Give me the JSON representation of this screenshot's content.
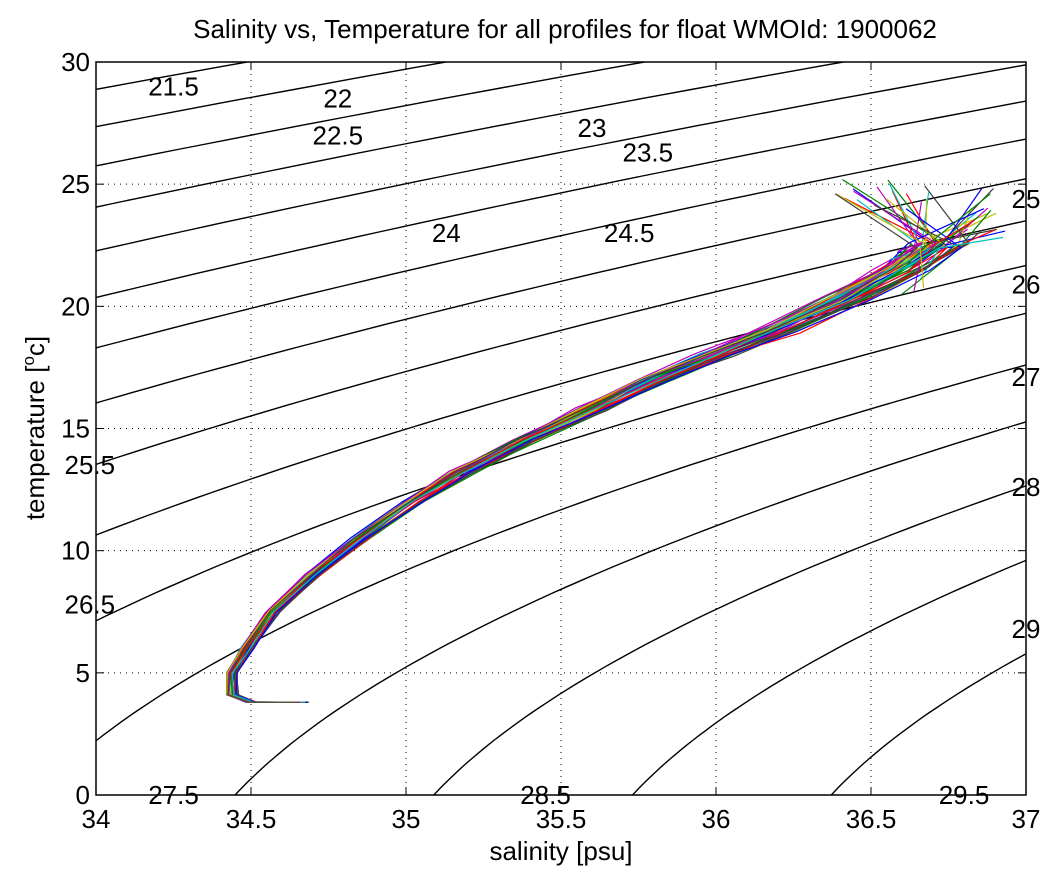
{
  "chart_data": {
    "type": "line",
    "title": "Salinity vs, Temperature for all profiles for float WMOId: 1900062",
    "xlabel": "salinity [psu]",
    "ylabel_main": "temperature [",
    "ylabel_sup": "o",
    "ylabel_tail": "c]",
    "xlim": [
      34,
      37
    ],
    "ylim": [
      0,
      30
    ],
    "xticks": [
      34,
      34.5,
      35,
      35.5,
      36,
      36.5,
      37
    ],
    "xtick_labels": [
      "34",
      "34.5",
      "35",
      "35.5",
      "36",
      "36.5",
      "37"
    ],
    "yticks": [
      0,
      5,
      10,
      15,
      20,
      25,
      30
    ],
    "ytick_labels": [
      "0",
      "5",
      "10",
      "15",
      "20",
      "25",
      "30"
    ],
    "grid": true,
    "legend": "none",
    "density_contours": [
      21.5,
      22,
      22.5,
      23,
      23.5,
      24,
      24.5,
      25,
      25.5,
      26,
      26.5,
      27,
      27.5,
      28,
      28.5,
      29,
      29.5
    ],
    "contour_labels": [
      {
        "text": "21.5",
        "s": 34.25,
        "t": 29.0
      },
      {
        "text": "22",
        "s": 34.78,
        "t": 28.5
      },
      {
        "text": "22.5",
        "s": 34.78,
        "t": 27.0
      },
      {
        "text": "23",
        "s": 35.6,
        "t": 27.3
      },
      {
        "text": "23.5",
        "s": 35.78,
        "t": 26.3
      },
      {
        "text": "24",
        "s": 35.13,
        "t": 23.0
      },
      {
        "text": "24.5",
        "s": 35.72,
        "t": 23.0
      },
      {
        "text": "25",
        "s": 37.0,
        "t": 24.4
      },
      {
        "text": "26",
        "s": 37.0,
        "t": 20.9
      },
      {
        "text": "27",
        "s": 37.0,
        "t": 17.1
      },
      {
        "text": "28",
        "s": 37.0,
        "t": 12.6
      },
      {
        "text": "29",
        "s": 37.0,
        "t": 6.8
      },
      {
        "text": "25.5",
        "s": 33.98,
        "t": 13.5
      },
      {
        "text": "26.5",
        "s": 33.98,
        "t": 7.8
      },
      {
        "text": "27.5",
        "s": 34.25,
        "t": 0.0
      },
      {
        "text": "28.5",
        "s": 35.45,
        "t": 0.0
      },
      {
        "text": "29.5",
        "s": 36.8,
        "t": 0.0
      }
    ],
    "profile_colors": [
      "#0000ff",
      "#008000",
      "#ff0000",
      "#00bfbf",
      "#bf00bf",
      "#bfbf00",
      "#404040"
    ],
    "profile_count": 49,
    "mean_profile": [
      {
        "s": 34.67,
        "t": 3.8
      },
      {
        "s": 34.5,
        "t": 3.8
      },
      {
        "s": 34.44,
        "t": 4.1
      },
      {
        "s": 34.44,
        "t": 5.0
      },
      {
        "s": 34.49,
        "t": 6.0
      },
      {
        "s": 34.57,
        "t": 7.5
      },
      {
        "s": 34.7,
        "t": 9.0
      },
      {
        "s": 34.85,
        "t": 10.5
      },
      {
        "s": 35.02,
        "t": 12.0
      },
      {
        "s": 35.18,
        "t": 13.2
      },
      {
        "s": 35.38,
        "t": 14.5
      },
      {
        "s": 35.6,
        "t": 15.8
      },
      {
        "s": 35.8,
        "t": 17.0
      },
      {
        "s": 36.0,
        "t": 18.0
      },
      {
        "s": 36.2,
        "t": 19.0
      },
      {
        "s": 36.42,
        "t": 20.3
      },
      {
        "s": 36.6,
        "t": 21.5
      },
      {
        "s": 36.72,
        "t": 22.5
      },
      {
        "s": 36.8,
        "t": 23.5
      }
    ],
    "profile_tops": [
      {
        "s": 36.42,
        "t": 25.3
      },
      {
        "s": 36.55,
        "t": 25.2
      },
      {
        "s": 36.65,
        "t": 25.0
      },
      {
        "s": 36.87,
        "t": 25.1
      },
      {
        "s": 36.85,
        "t": 24.5
      },
      {
        "s": 36.9,
        "t": 24.2
      },
      {
        "s": 36.6,
        "t": 22.8
      },
      {
        "s": 36.63,
        "t": 21.5
      }
    ]
  }
}
